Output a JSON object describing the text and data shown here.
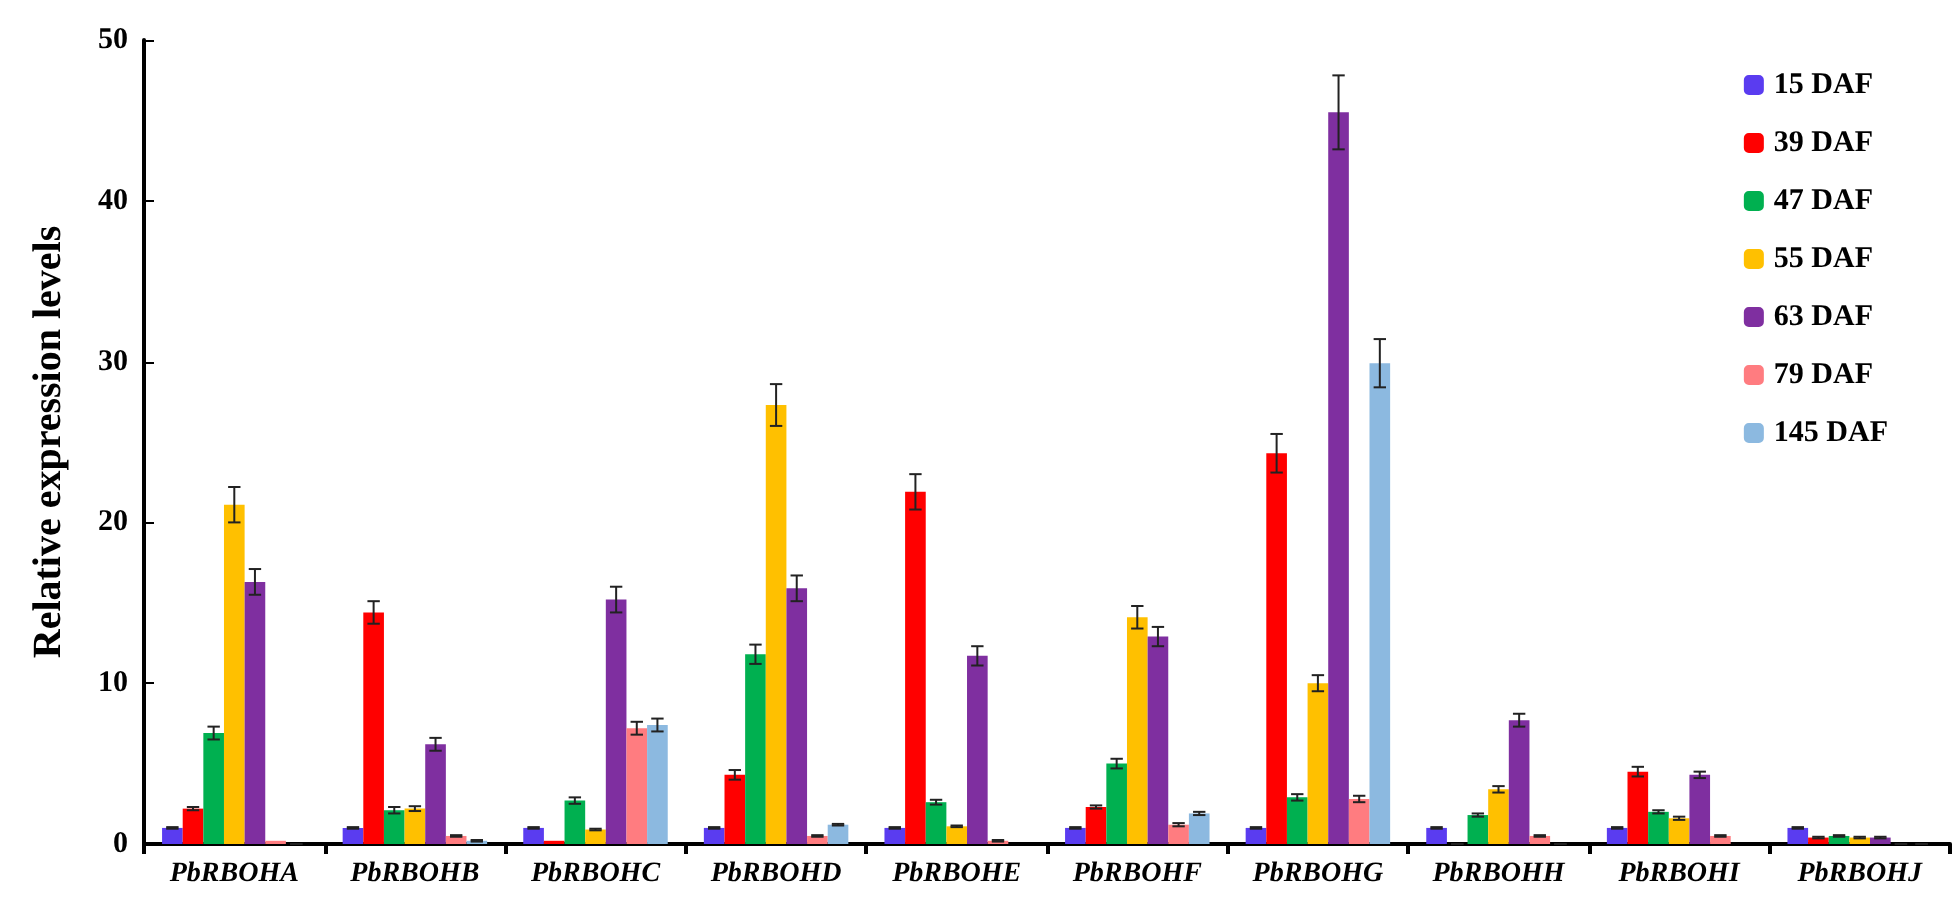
{
  "chart_data": {
    "type": "bar",
    "ylabel": "Relative expression levels",
    "categories": [
      "PbRBOHA",
      "PbRBOHB",
      "PbRBOHC",
      "PbRBOHD",
      "PbRBOHE",
      "PbRBOHF",
      "PbRBOHG",
      "PbRBOHH",
      "PbRBOHI",
      "PbRBOHJ"
    ],
    "series": [
      {
        "name": "15 DAF",
        "color": "#5a3cf0",
        "values": [
          1,
          1,
          1,
          1,
          1,
          1,
          1,
          1,
          1,
          1
        ],
        "errors": [
          0.05,
          0.05,
          0.05,
          0.05,
          0.05,
          0.05,
          0.05,
          0.05,
          0.05,
          0.05
        ]
      },
      {
        "name": "39 DAF",
        "color": "#ff0000",
        "values": [
          2.2,
          14.4,
          0.2,
          4.3,
          21.9,
          2.3,
          24.3,
          0,
          4.5,
          0.4
        ],
        "errors": [
          0.1,
          0.7,
          null,
          0.3,
          1.1,
          0.1,
          1.2,
          0,
          0.3,
          0.05
        ]
      },
      {
        "name": "47 DAF",
        "color": "#00b050",
        "values": [
          6.9,
          2.1,
          2.7,
          11.8,
          2.6,
          5.0,
          2.9,
          1.8,
          2.0,
          0.5
        ],
        "errors": [
          0.4,
          0.2,
          0.2,
          0.6,
          0.15,
          0.3,
          0.2,
          0.1,
          0.1,
          0.05
        ]
      },
      {
        "name": "55 DAF",
        "color": "#ffc000",
        "values": [
          21.1,
          2.2,
          0.9,
          27.3,
          1.1,
          14.1,
          10.0,
          3.4,
          1.6,
          0.4
        ],
        "errors": [
          1.1,
          0.15,
          0.05,
          1.3,
          0.05,
          0.7,
          0.5,
          0.2,
          0.1,
          0.05
        ]
      },
      {
        "name": "63 DAF",
        "color": "#7f2fa0",
        "values": [
          16.3,
          6.2,
          15.2,
          15.9,
          11.7,
          12.9,
          45.5,
          7.7,
          4.3,
          0.4
        ],
        "errors": [
          0.8,
          0.4,
          0.8,
          0.8,
          0.6,
          0.6,
          2.3,
          0.4,
          0.2,
          0.05
        ]
      },
      {
        "name": "79 DAF",
        "color": "#ff7c80",
        "values": [
          0.2,
          0.5,
          7.2,
          0.5,
          0.2,
          1.2,
          2.8,
          0.5,
          0.5,
          0
        ],
        "errors": [
          null,
          0.05,
          0.4,
          0.05,
          0.05,
          0.1,
          0.2,
          0.05,
          0.05,
          0
        ]
      },
      {
        "name": "145 DAF",
        "color": "#8cb9e0",
        "values": [
          0,
          0.2,
          7.4,
          1.2,
          null,
          1.9,
          29.9,
          0,
          null,
          0
        ],
        "errors": [
          0,
          0.05,
          0.4,
          0.05,
          null,
          0.1,
          1.5,
          0,
          null,
          0
        ]
      }
    ],
    "ylim": [
      0,
      50
    ],
    "yticks": [
      0,
      10,
      20,
      30,
      40,
      50
    ],
    "grid": false,
    "legend": "top right"
  }
}
